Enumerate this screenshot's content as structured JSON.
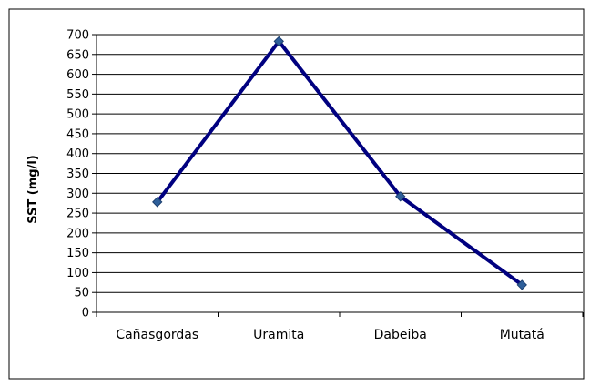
{
  "chart_data": {
    "type": "line",
    "title": "",
    "xlabel": "",
    "ylabel": "SST (mg/l)",
    "categories": [
      "Cañasgordas",
      "Uramita",
      "Dabeiba",
      "Mutatá"
    ],
    "series": [
      {
        "values": [
          278,
          683,
          292,
          69
        ]
      }
    ],
    "ylim": [
      0,
      700
    ],
    "ytick_step": 50,
    "yticks": [
      "0",
      "50",
      "100",
      "150",
      "200",
      "250",
      "300",
      "350",
      "400",
      "450",
      "500",
      "550",
      "600",
      "650",
      "700"
    ],
    "grid": true,
    "legend": "none",
    "colors": {
      "line": "#000080",
      "marker": "#2e5f9a",
      "grid": "#000000"
    }
  }
}
